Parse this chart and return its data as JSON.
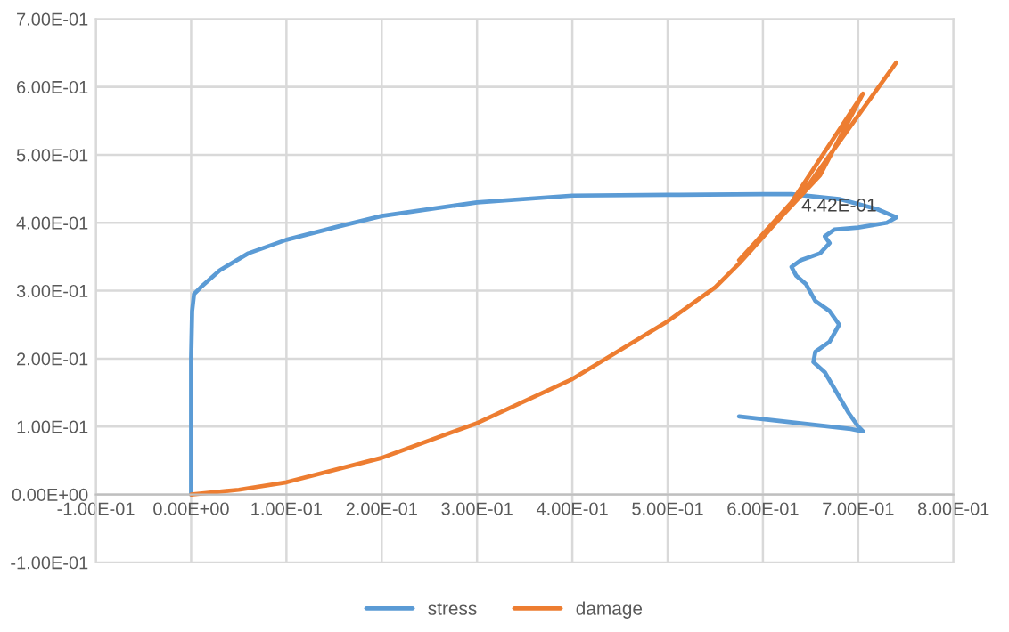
{
  "chart_data": {
    "type": "line",
    "xlim": [
      -0.1,
      0.8
    ],
    "ylim": [
      -0.1,
      0.7
    ],
    "xticks": [
      {
        "value": -0.1,
        "label": "-1.00E-01"
      },
      {
        "value": 0,
        "label": "0.00E+00"
      },
      {
        "value": 0.1,
        "label": "1.00E-01"
      },
      {
        "value": 0.2,
        "label": "2.00E-01"
      },
      {
        "value": 0.3,
        "label": "3.00E-01"
      },
      {
        "value": 0.4,
        "label": "4.00E-01"
      },
      {
        "value": 0.5,
        "label": "5.00E-01"
      },
      {
        "value": 0.6,
        "label": "6.00E-01"
      },
      {
        "value": 0.7,
        "label": "7.00E-01"
      },
      {
        "value": 0.8,
        "label": "8.00E-01"
      }
    ],
    "yticks": [
      {
        "value": -0.1,
        "label": "-1.00E-01"
      },
      {
        "value": 0,
        "label": "0.00E+00"
      },
      {
        "value": 0.1,
        "label": "1.00E-01"
      },
      {
        "value": 0.2,
        "label": "2.00E-01"
      },
      {
        "value": 0.3,
        "label": "3.00E-01"
      },
      {
        "value": 0.4,
        "label": "4.00E-01"
      },
      {
        "value": 0.5,
        "label": "5.00E-01"
      },
      {
        "value": 0.6,
        "label": "6.00E-01"
      },
      {
        "value": 0.7,
        "label": "7.00E-01"
      }
    ],
    "grid": true,
    "legend": "bottom",
    "marker": "none",
    "line_style": "solid",
    "annotations": [
      {
        "text": "4.42E-01",
        "x": 0.63,
        "y": 0.442
      }
    ],
    "series": [
      {
        "name": "stress",
        "color": "#5b9bd5",
        "x": [
          0,
          0,
          0.001,
          0.003,
          0.01,
          0.03,
          0.06,
          0.1,
          0.15,
          0.2,
          0.3,
          0.4,
          0.5,
          0.6,
          0.63,
          0.68,
          0.72,
          0.74,
          0.73,
          0.7,
          0.675,
          0.665,
          0.67,
          0.66,
          0.64,
          0.63,
          0.635,
          0.645,
          0.655,
          0.67,
          0.68,
          0.67,
          0.655,
          0.653,
          0.665,
          0.69,
          0.7,
          0.705,
          0.69,
          0.575
        ],
        "values": [
          0,
          0.2,
          0.27,
          0.295,
          0.305,
          0.33,
          0.355,
          0.375,
          0.393,
          0.41,
          0.43,
          0.44,
          0.441,
          0.442,
          0.442,
          0.435,
          0.42,
          0.408,
          0.4,
          0.393,
          0.39,
          0.38,
          0.37,
          0.355,
          0.345,
          0.335,
          0.322,
          0.31,
          0.285,
          0.27,
          0.25,
          0.225,
          0.21,
          0.195,
          0.18,
          0.12,
          0.1,
          0.093,
          0.097,
          0.115
        ]
      },
      {
        "name": "damage",
        "color": "#ed7d31",
        "x": [
          0,
          0.05,
          0.1,
          0.2,
          0.3,
          0.4,
          0.5,
          0.55,
          0.575,
          0.62,
          0.66,
          0.705,
          0.63,
          0.575,
          0.65,
          0.74
        ],
        "values": [
          0,
          0.007,
          0.018,
          0.054,
          0.105,
          0.17,
          0.255,
          0.305,
          0.34,
          0.41,
          0.47,
          0.59,
          0.43,
          0.345,
          0.46,
          0.636
        ]
      }
    ]
  }
}
